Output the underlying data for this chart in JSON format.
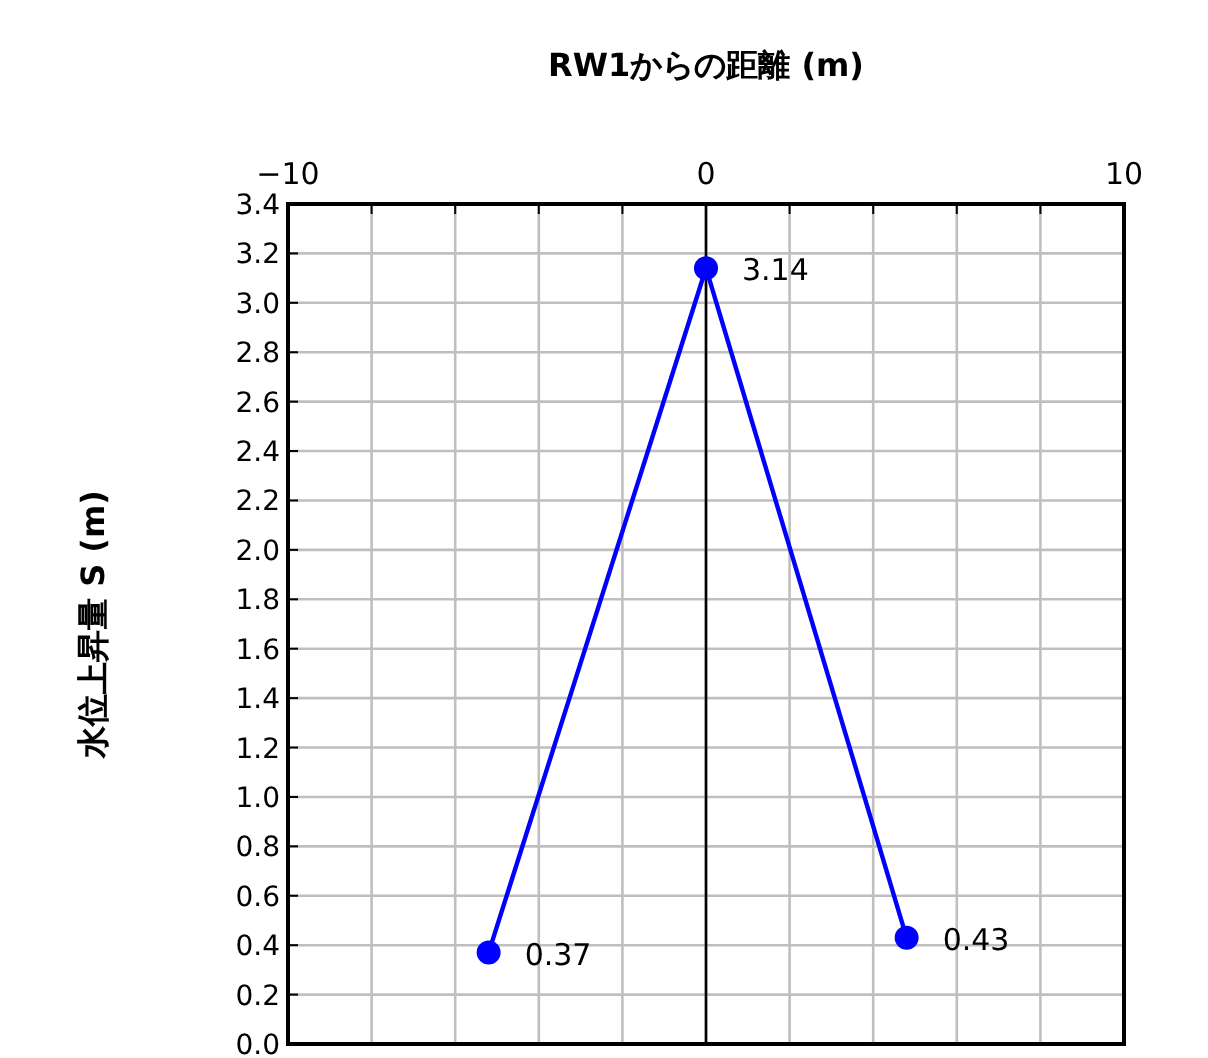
{
  "chart_data": {
    "type": "line",
    "xlabel": "RW1からの距離 (m)",
    "ylabel": "水位上昇量 S (m)",
    "x": [
      -5.2,
      0,
      4.8
    ],
    "series": [
      {
        "color": "#0000ff",
        "values": [
          0.37,
          3.14,
          0.43
        ]
      }
    ],
    "xlim": [
      -10,
      10
    ],
    "xticks": [
      {
        "value": -10,
        "label": "−10"
      },
      {
        "value": -8,
        "label": null
      },
      {
        "value": -6,
        "label": null
      },
      {
        "value": -4,
        "label": null
      },
      {
        "value": -2,
        "label": null
      },
      0,
      {
        "value": 2,
        "label": null
      },
      {
        "value": 4,
        "label": null
      },
      {
        "value": 6,
        "label": null
      },
      {
        "value": 8,
        "label": null
      },
      10
    ],
    "ylim": [
      0,
      3.4
    ],
    "yticks": [
      {
        "value": 0,
        "label": "0.0"
      },
      0.2,
      0.4,
      0.6,
      0.8,
      {
        "value": 1,
        "label": "1.0"
      },
      1.2,
      1.4,
      1.6,
      1.8,
      {
        "value": 2,
        "label": "2.0"
      },
      2.2,
      2.4,
      2.6,
      2.8,
      {
        "value": 3,
        "label": "3.0"
      },
      3.2,
      3.4
    ],
    "grid": true,
    "marker": "circle",
    "line_style": "solid",
    "data_labels": true,
    "ref_lines": [
      {
        "axis": "x",
        "value": 0,
        "color": "#000000"
      }
    ]
  }
}
